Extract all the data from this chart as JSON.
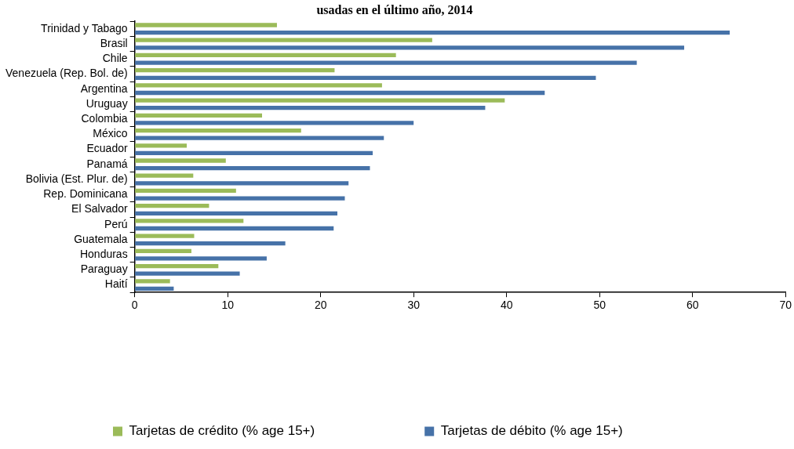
{
  "chart_data": {
    "type": "bar",
    "orientation": "horizontal",
    "title": "usadas en el último año, 2014",
    "categories": [
      "Trinidad y Tabago",
      "Brasil",
      "Chile",
      "Venezuela (Rep. Bol. de)",
      "Argentina",
      "Uruguay",
      "Colombia",
      "México",
      "Ecuador",
      "Panamá",
      "Bolivia (Est. Plur. de)",
      "Rep. Dominicana",
      "El Salvador",
      "Perú",
      "Guatemala",
      "Honduras",
      "Paraguay",
      "Haití"
    ],
    "series": [
      {
        "name": "Tarjetas de crédito (% age 15+)",
        "color": "#9bbb59",
        "values": [
          15.3,
          32.0,
          28.1,
          21.5,
          26.6,
          39.8,
          13.7,
          17.9,
          5.6,
          9.8,
          6.3,
          10.9,
          8.0,
          11.7,
          6.4,
          6.1,
          9.0,
          3.8
        ]
      },
      {
        "name": "Tarjetas de débito (% age 15+)",
        "color": "#4672a8",
        "values": [
          64.0,
          59.1,
          54.0,
          49.6,
          44.1,
          37.7,
          30.0,
          26.8,
          25.6,
          25.3,
          23.0,
          22.6,
          21.8,
          21.4,
          16.2,
          14.2,
          11.3,
          4.2
        ]
      }
    ],
    "xlim": [
      0,
      70
    ],
    "xticks": [
      0,
      10,
      20,
      30,
      40,
      50,
      60,
      70
    ],
    "grid": false,
    "legend": "bottom"
  }
}
